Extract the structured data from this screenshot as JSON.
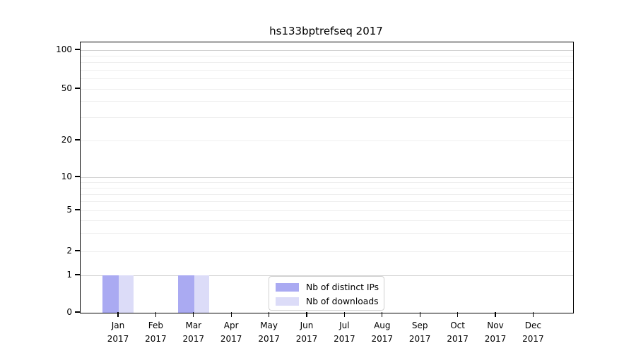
{
  "chart_data": {
    "type": "bar",
    "title": "hs133bptrefseq 2017",
    "categories": [
      "Jan",
      "Feb",
      "Mar",
      "Apr",
      "May",
      "Jun",
      "Jul",
      "Aug",
      "Sep",
      "Oct",
      "Nov",
      "Dec"
    ],
    "x_sublabel": "2017",
    "series": [
      {
        "name": "Nb of distinct IPs",
        "color": "#aaaaf2",
        "values": [
          1,
          0,
          1,
          0,
          0,
          0,
          0,
          0,
          0,
          0,
          0,
          0
        ]
      },
      {
        "name": "Nb of downloads",
        "color": "#dcdcf8",
        "values": [
          1,
          0,
          1,
          0,
          0,
          0,
          0,
          0,
          0,
          0,
          0,
          0
        ]
      }
    ],
    "yaxis": {
      "scale": "symlog",
      "ylim": [
        0,
        100
      ],
      "ticks": [
        0,
        1,
        2,
        5,
        10,
        20,
        50,
        100
      ],
      "major_gridlines": [
        1,
        10,
        100
      ],
      "minor_gridlines": [
        2,
        3,
        4,
        5,
        6,
        7,
        8,
        9,
        20,
        30,
        40,
        50,
        60,
        70,
        80,
        90
      ]
    },
    "grid": "horizontal",
    "legend_position": "lower center"
  },
  "colors": {
    "axis": "#000000",
    "major_grid": "#d2d2d2",
    "minor_grid": "#efefef",
    "background": "#ffffff"
  }
}
